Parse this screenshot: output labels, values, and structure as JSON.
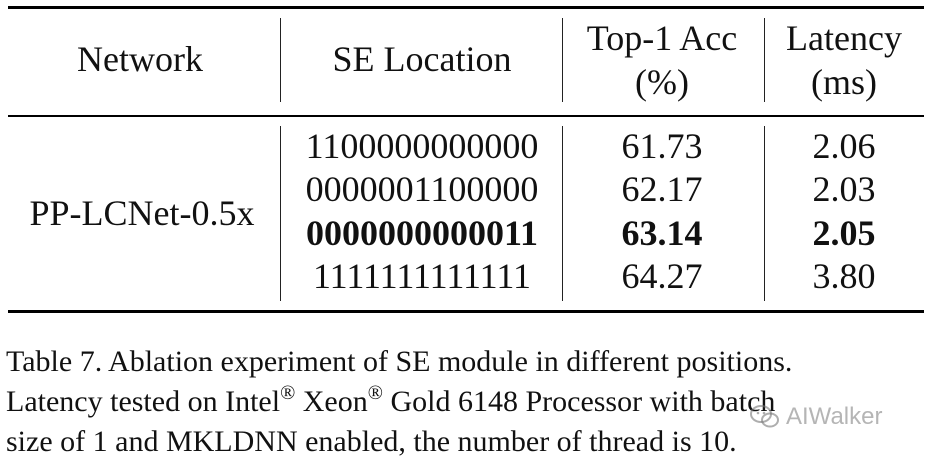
{
  "table": {
    "headers": {
      "network": "Network",
      "se_location": "SE Location",
      "top1_line1": "Top-1 Acc",
      "top1_line2": "(%)",
      "latency_line1": "Latency",
      "latency_line2": "(ms)"
    },
    "network_name": "PP-LCNet-0.5x",
    "rows": [
      {
        "se_location": "1100000000000",
        "top1": "61.73",
        "latency": "2.06",
        "bold": false
      },
      {
        "se_location": "0000001100000",
        "top1": "62.17",
        "latency": "2.03",
        "bold": false
      },
      {
        "se_location": "0000000000011",
        "top1": "63.14",
        "latency": "2.05",
        "bold": true
      },
      {
        "se_location": "1111111111111",
        "top1": "64.27",
        "latency": "3.80",
        "bold": false
      }
    ]
  },
  "caption": {
    "line1": "Table 7. Ablation experiment of SE module in different positions.",
    "line2_a": "Latency tested on Intel",
    "reg_symbol": "®",
    "line2_b": " Xeon",
    "line2_c": " Gold 6148 Processor with batch",
    "line3": "size of 1 and MKLDNN enabled, the number of thread is 10."
  },
  "watermark": {
    "text": "AIWalker",
    "icon": "wechat-icon"
  }
}
